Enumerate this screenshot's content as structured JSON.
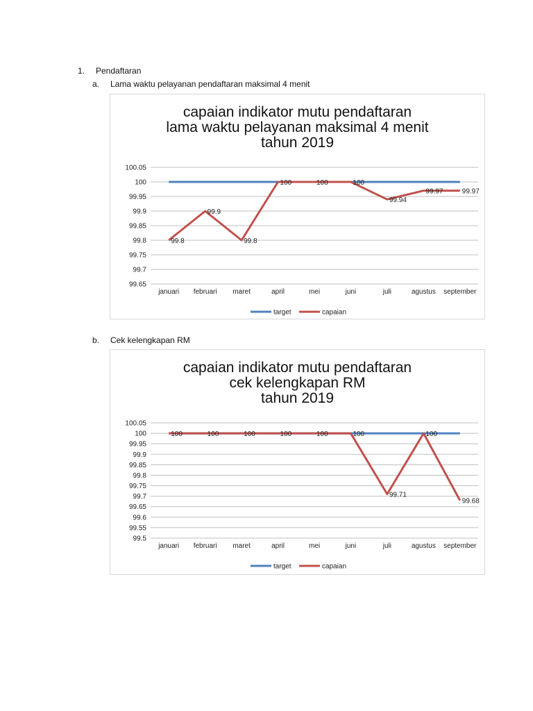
{
  "section": {
    "number": "1.",
    "title": "Pendaftaran"
  },
  "subsections": [
    {
      "letter": "a.",
      "title": "Lama waktu pelayanan pendaftaran maksimal 4 menit"
    },
    {
      "letter": "b.",
      "title": "Cek kelengkapan RM"
    }
  ],
  "legend": {
    "target": "target",
    "capaian": "capaian"
  },
  "colors": {
    "target": "#4f81bd",
    "capaian": "#c0504d",
    "grid": "#bfbfbf"
  },
  "chart_titles": [
    [
      "capaian indikator mutu pendaftaran",
      "lama waktu pelayanan maksimal 4 menit",
      "tahun 2019"
    ],
    [
      "capaian indikator mutu pendaftaran",
      "cek kelengkapan RM",
      "tahun 2019"
    ]
  ],
  "chart_data": [
    {
      "type": "line",
      "title": "capaian indikator mutu pendaftaran lama waktu pelayanan maksimal 4 menit tahun 2019",
      "categories": [
        "januari",
        "februari",
        "maret",
        "april",
        "mei",
        "juni",
        "juli",
        "agustus",
        "september"
      ],
      "series": [
        {
          "name": "target",
          "values": [
            100,
            100,
            100,
            100,
            100,
            100,
            100,
            100,
            100
          ]
        },
        {
          "name": "capaian",
          "values": [
            99.8,
            99.9,
            99.8,
            100,
            100,
            100,
            99.94,
            99.97,
            99.97
          ]
        }
      ],
      "data_labels": [
        "99.8",
        "99.9",
        "99.8",
        "100",
        "100",
        "100",
        "99.94",
        "99.97",
        "99.97"
      ],
      "yticks": [
        "100.05",
        "100",
        "99.95",
        "99.9",
        "99.85",
        "99.8",
        "99.75",
        "99.7",
        "99.65"
      ],
      "ylim": [
        99.65,
        100.05
      ],
      "xlabel": "",
      "ylabel": "",
      "grid": true,
      "legend_position": "bottom"
    },
    {
      "type": "line",
      "title": "capaian indikator mutu pendaftaran cek kelengkapan RM tahun 2019",
      "categories": [
        "januari",
        "februari",
        "maret",
        "april",
        "mei",
        "juni",
        "juli",
        "agustus",
        "september"
      ],
      "series": [
        {
          "name": "target",
          "values": [
            100,
            100,
            100,
            100,
            100,
            100,
            100,
            100,
            100
          ]
        },
        {
          "name": "capaian",
          "values": [
            100,
            100,
            100,
            100,
            100,
            100,
            99.71,
            100,
            99.68
          ]
        }
      ],
      "data_labels": [
        "100",
        "100",
        "100",
        "100",
        "100",
        "100",
        "99.71",
        "100",
        "99.68"
      ],
      "yticks": [
        "100.05",
        "100",
        "99.95",
        "99.9",
        "99.85",
        "99.8",
        "99.75",
        "99.7",
        "99.65",
        "99.6",
        "99.55",
        "99.5"
      ],
      "ylim": [
        99.5,
        100.05
      ],
      "xlabel": "",
      "ylabel": "",
      "grid": true,
      "legend_position": "bottom"
    }
  ]
}
